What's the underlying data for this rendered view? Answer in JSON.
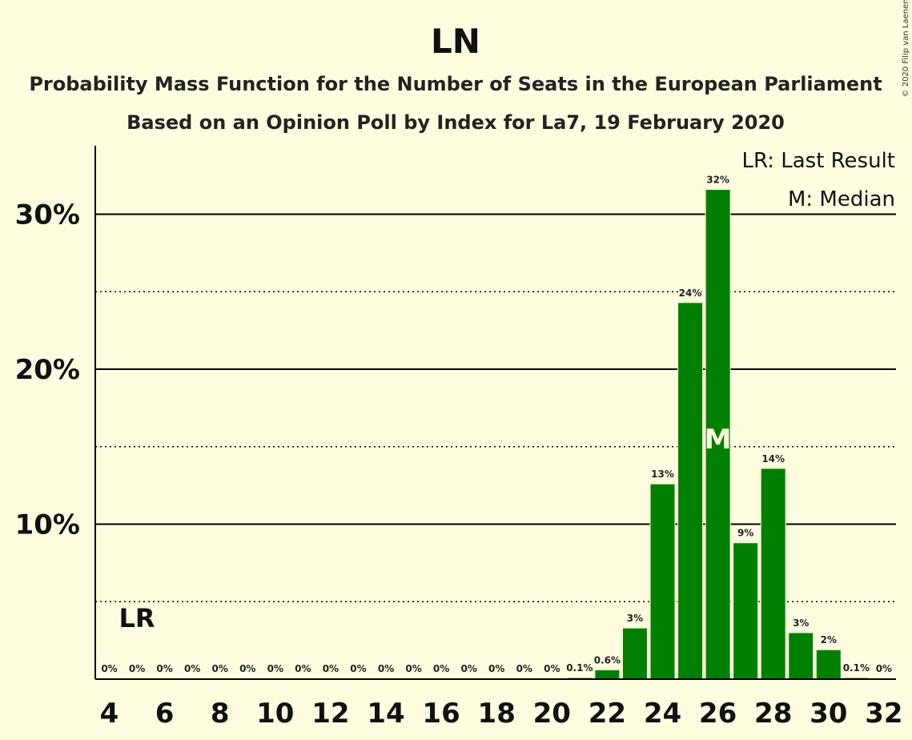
{
  "copyright": "© 2020 Filip van Laenen",
  "chart_data": {
    "type": "bar",
    "title": "LN",
    "subtitle": "Probability Mass Function for the Number of Seats in the European Parliament",
    "subtitle2": "Based on an Opinion Poll by Index for La7, 19 February 2020",
    "x_tick_labels": [
      "4",
      "6",
      "8",
      "10",
      "12",
      "14",
      "16",
      "18",
      "20",
      "22",
      "24",
      "26",
      "28",
      "30",
      "32"
    ],
    "y_tick_labels": [
      "10%",
      "20%",
      "30%"
    ],
    "categories": [
      4,
      5,
      6,
      7,
      8,
      9,
      10,
      11,
      12,
      13,
      14,
      15,
      16,
      17,
      18,
      19,
      20,
      21,
      22,
      23,
      24,
      25,
      26,
      27,
      28,
      29,
      30,
      31,
      32
    ],
    "values": [
      0,
      0,
      0,
      0,
      0,
      0,
      0,
      0,
      0,
      0,
      0,
      0,
      0,
      0,
      0,
      0,
      0,
      0.1,
      0.6,
      3.3,
      12.6,
      24.3,
      31.6,
      8.8,
      13.6,
      3.0,
      1.9,
      0.1,
      0
    ],
    "value_labels": [
      "0%",
      "0%",
      "0%",
      "0%",
      "0%",
      "0%",
      "0%",
      "0%",
      "0%",
      "0%",
      "0%",
      "0%",
      "0%",
      "0%",
      "0%",
      "0%",
      "0%",
      "0.1%",
      "0.6%",
      "3%",
      "13%",
      "24%",
      "32%",
      "9%",
      "14%",
      "3%",
      "2%",
      "0.1%",
      "0%"
    ],
    "ylim": [
      0,
      34
    ],
    "bar_color": "#008000",
    "last_result_seat": 5,
    "last_result_marker": "LR",
    "median_seat": 26,
    "median_marker": "M",
    "legend": [
      "LR: Last Result",
      "M: Median"
    ],
    "legend_position": "top-right"
  }
}
